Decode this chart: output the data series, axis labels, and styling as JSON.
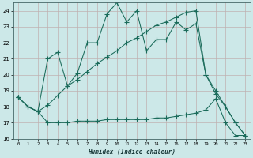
{
  "xlabel": "Humidex (Indice chaleur)",
  "bg_color": "#cce8e8",
  "line_color": "#1a6b5a",
  "xlim": [
    -0.5,
    23.5
  ],
  "ylim": [
    16,
    24.5
  ],
  "yticks": [
    16,
    17,
    18,
    19,
    20,
    21,
    22,
    23,
    24
  ],
  "xticks": [
    0,
    1,
    2,
    3,
    4,
    5,
    6,
    7,
    8,
    9,
    10,
    11,
    12,
    13,
    14,
    15,
    16,
    17,
    18,
    19,
    20,
    21,
    22,
    23
  ],
  "main_x": [
    0,
    1,
    2,
    3,
    4,
    5,
    6,
    7,
    8,
    9,
    10,
    11,
    12,
    13,
    14,
    15,
    16,
    17,
    18,
    19,
    20,
    21,
    22,
    23
  ],
  "main_y": [
    18.6,
    18.0,
    17.7,
    21.0,
    21.4,
    19.3,
    20.1,
    22.0,
    22.0,
    23.8,
    24.5,
    23.3,
    24.0,
    21.5,
    22.2,
    22.2,
    23.3,
    22.8,
    23.2,
    20.0,
    19.0,
    18.0,
    17.0,
    16.2
  ],
  "upper_x": [
    0,
    1,
    2,
    3,
    4,
    5,
    6,
    7,
    8,
    9,
    10,
    11,
    12,
    13,
    14,
    15,
    16,
    17,
    18,
    19,
    20,
    21,
    22,
    23
  ],
  "upper_y": [
    18.6,
    18.0,
    17.7,
    18.1,
    18.7,
    19.3,
    19.7,
    20.2,
    20.7,
    21.1,
    21.5,
    22.0,
    22.3,
    22.7,
    23.1,
    23.3,
    23.6,
    23.9,
    24.0,
    20.0,
    18.8,
    18.0,
    17.0,
    16.2
  ],
  "lower_x": [
    0,
    1,
    2,
    3,
    4,
    5,
    6,
    7,
    8,
    9,
    10,
    11,
    12,
    13,
    14,
    15,
    16,
    17,
    18,
    19,
    20,
    21,
    22,
    23
  ],
  "lower_y": [
    18.6,
    18.0,
    17.7,
    17.0,
    17.0,
    17.0,
    17.1,
    17.1,
    17.1,
    17.2,
    17.2,
    17.2,
    17.2,
    17.2,
    17.3,
    17.3,
    17.4,
    17.5,
    17.6,
    17.8,
    18.5,
    17.0,
    16.2,
    16.2
  ]
}
